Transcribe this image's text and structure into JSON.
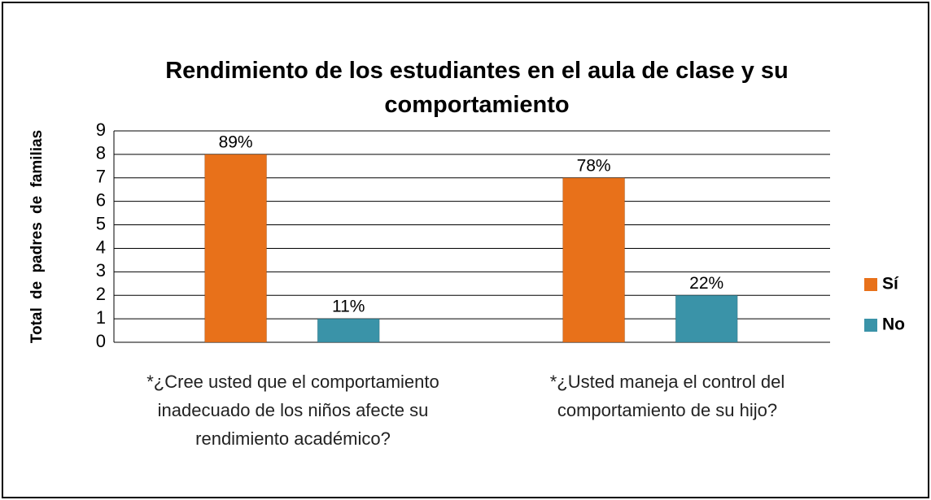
{
  "chart_data": {
    "type": "bar",
    "title": "Rendimiento de los estudiantes en el aula de clase y su comportamiento",
    "y_label": "Total de padres de familias",
    "categories": [
      "*¿Cree usted que el comportamiento inadecuado de los niños afecte su rendimiento académico?",
      "*¿Usted maneja el control del comportamiento de su hijo?"
    ],
    "series": [
      {
        "name": "Sí",
        "color": "#e8711a",
        "values": [
          8,
          7
        ],
        "percent_labels": [
          "89%",
          "78%"
        ]
      },
      {
        "name": "No",
        "color": "#3a93a8",
        "values": [
          1,
          2
        ],
        "percent_labels": [
          "11%",
          "22%"
        ]
      }
    ],
    "ylim": [
      0,
      9
    ],
    "yticks": [
      0,
      1,
      2,
      3,
      4,
      5,
      6,
      7,
      8,
      9
    ],
    "grid": true,
    "legend": "right"
  }
}
